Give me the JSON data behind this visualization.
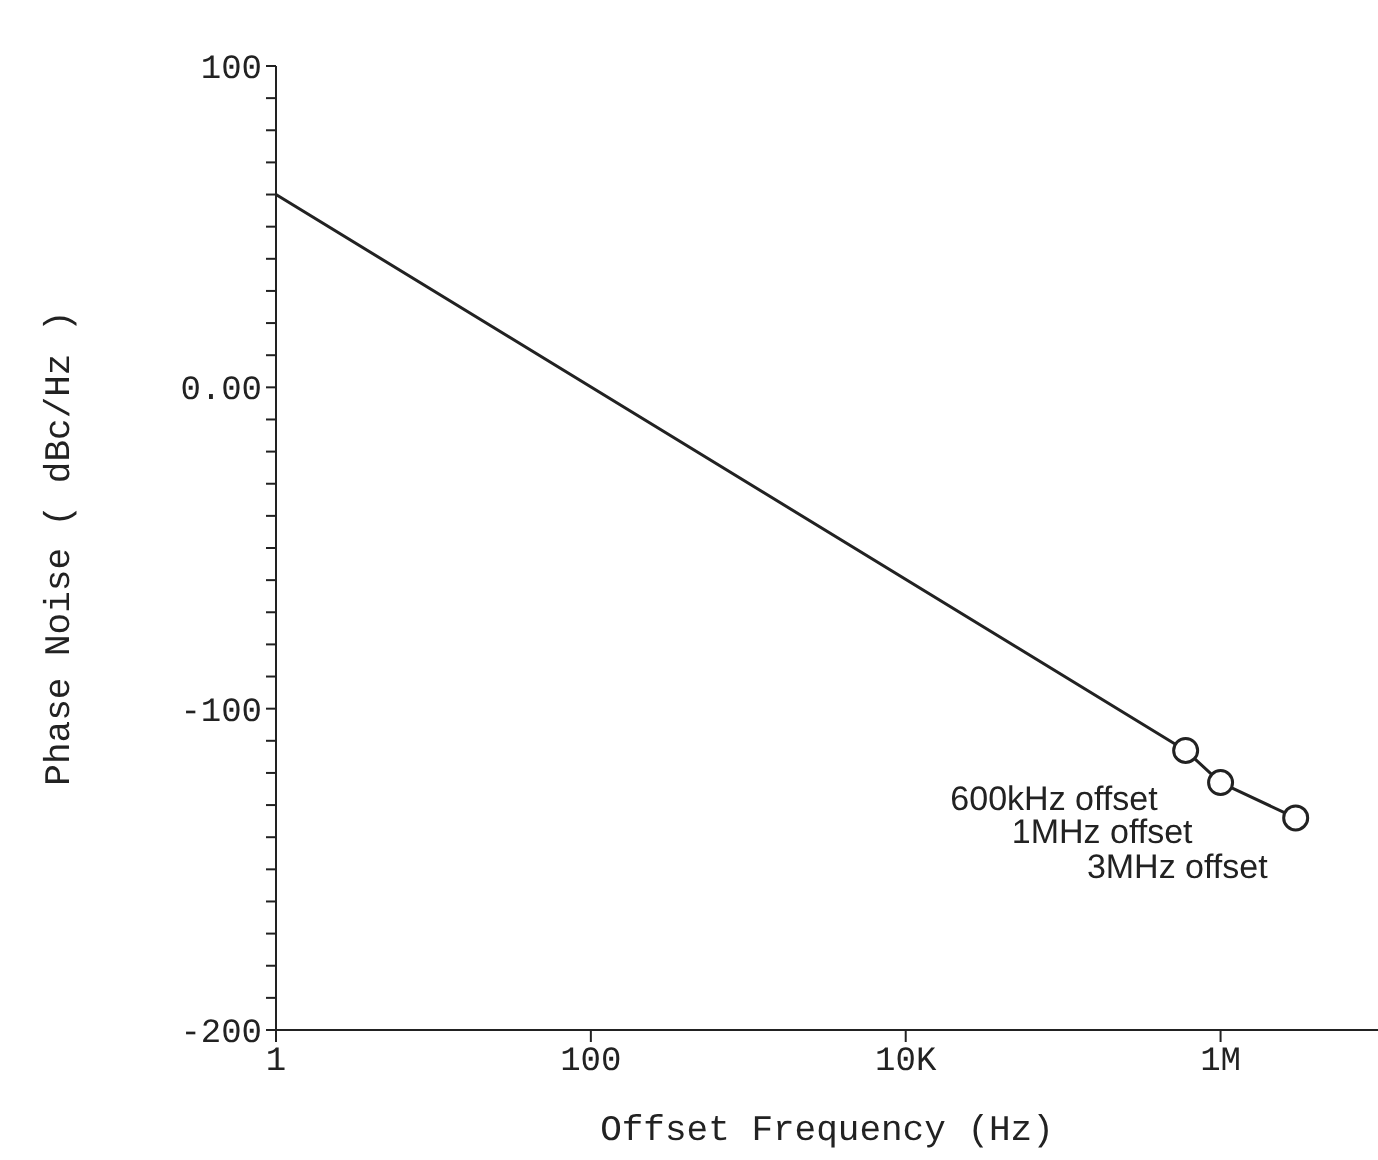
{
  "chart_data": {
    "type": "line",
    "xlabel": "Offset Frequency (Hz)",
    "ylabel": "Phase Noise ( dBc/Hz )",
    "log": "x",
    "xlim": [
      1,
      10000000
    ],
    "xticks": [
      1,
      100,
      {
        "value": 10000,
        "label": "10K"
      },
      {
        "value": 1000000,
        "label": "1M"
      }
    ],
    "ylim": [
      -200,
      100
    ],
    "yticks": [
      100,
      {
        "value": 90,
        "label": null
      },
      {
        "value": 80,
        "label": null
      },
      {
        "value": 70,
        "label": null
      },
      {
        "value": 60,
        "label": null
      },
      {
        "value": 50,
        "label": null
      },
      {
        "value": 40,
        "label": null
      },
      {
        "value": 30,
        "label": null
      },
      {
        "value": 20,
        "label": null
      },
      {
        "value": 10,
        "label": null
      },
      {
        "value": 0,
        "label": "0.00"
      },
      {
        "value": -10,
        "label": null
      },
      {
        "value": -20,
        "label": null
      },
      {
        "value": -30,
        "label": null
      },
      {
        "value": -40,
        "label": null
      },
      {
        "value": -50,
        "label": null
      },
      {
        "value": -60,
        "label": null
      },
      {
        "value": -70,
        "label": null
      },
      {
        "value": -80,
        "label": null
      },
      {
        "value": -90,
        "label": null
      },
      -100,
      {
        "value": -110,
        "label": null
      },
      {
        "value": -120,
        "label": null
      },
      {
        "value": -130,
        "label": null
      },
      {
        "value": -140,
        "label": null
      },
      {
        "value": -150,
        "label": null
      },
      {
        "value": -160,
        "label": null
      },
      {
        "value": -170,
        "label": null
      },
      {
        "value": -180,
        "label": null
      },
      {
        "value": -190,
        "label": null
      },
      -200
    ],
    "line_style": "solid",
    "series": [
      {
        "color": "#222222",
        "x": [
          1,
          600000,
          1000000,
          3000000
        ],
        "values": [
          60,
          -113,
          -123,
          -134
        ],
        "marker": "none"
      },
      {
        "type": "scatter",
        "color": "#222222",
        "x": [
          600000,
          1000000,
          3000000
        ],
        "values": [
          -113,
          -123,
          -134
        ],
        "marker": "circle"
      }
    ],
    "annotations": [
      {
        "text": "600kHz offset",
        "x": 600000,
        "y": -113
      },
      {
        "text": "1MHz offset",
        "x": 1000000,
        "y": -123
      },
      {
        "text": "3MHz offset",
        "x": 3000000,
        "y": -134
      }
    ]
  }
}
